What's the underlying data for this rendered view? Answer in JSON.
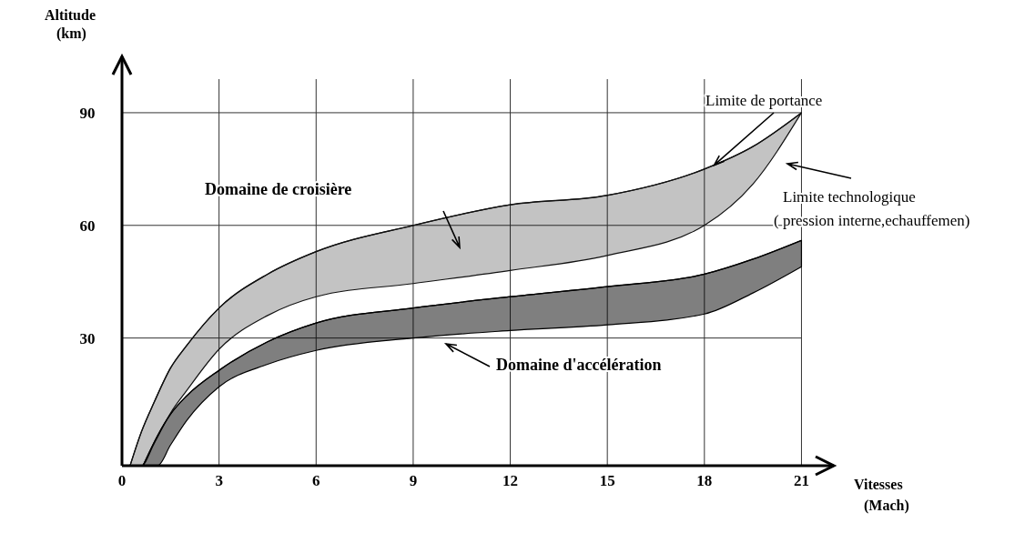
{
  "chart_data": {
    "type": "line",
    "xlabel": "Vitesses\n(Mach)",
    "ylabel": "Altitude\n(km)",
    "xlim": [
      0,
      22
    ],
    "ylim": [
      -4,
      105
    ],
    "xticks": [
      0,
      3,
      6,
      9,
      12,
      15,
      18,
      21
    ],
    "yticks": [
      30,
      60,
      90
    ],
    "grid": true,
    "series": [
      {
        "color": "#111111",
        "x": [
          0.25,
          0.6,
          1,
          1.5,
          2,
          3,
          4.5,
          6,
          9,
          12,
          15,
          18,
          19.5,
          21
        ],
        "values": [
          -4,
          5,
          13,
          22,
          28,
          38,
          47,
          53,
          60,
          65.5,
          68,
          75,
          81,
          90
        ],
        "upper": [
          -4,
          5,
          13,
          22,
          28,
          38,
          47,
          53,
          60,
          65.5,
          68,
          75,
          81,
          90
        ],
        "lower": [
          -4,
          -4,
          2,
          10,
          16,
          27,
          36,
          41,
          44.5,
          48,
          52,
          60,
          71,
          90
        ]
      },
      {
        "color": "#000000",
        "x": [
          0.65,
          1.1,
          1.5,
          2,
          3,
          4.5,
          6,
          9,
          12,
          15,
          18,
          19.5,
          21
        ],
        "values": [
          -4,
          4,
          9.7,
          14.6,
          21.4,
          29,
          34,
          38,
          41,
          43.7,
          47,
          51,
          56
        ],
        "upper": [
          -4,
          4,
          9.7,
          14.6,
          21.4,
          29,
          34,
          38,
          41,
          43.7,
          47,
          51,
          56
        ],
        "lower": [
          -4,
          -4,
          1.5,
          8,
          17,
          23,
          26.7,
          30,
          32,
          33.5,
          36.4,
          42,
          49
        ]
      }
    ],
    "annotations": [
      "Domaine de croisière",
      "Domaine d'accélération",
      {
        "text": "Limite de portance",
        "x": 18.3,
        "y": 76
      },
      "Limite technologique\n( pression interne,echauffemen)"
    ]
  }
}
